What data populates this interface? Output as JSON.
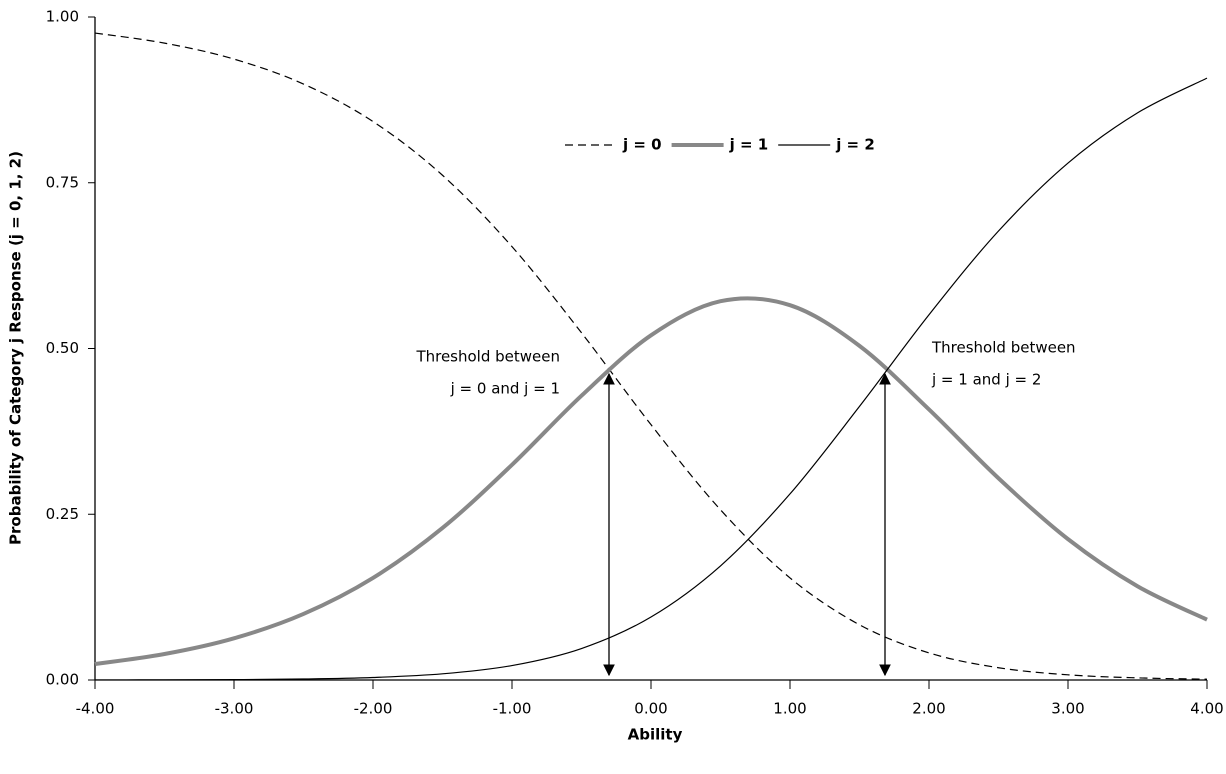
{
  "chart_data": {
    "type": "line",
    "xlabel": "Ability",
    "ylabel": "Probability of Category j Response (j = 0, 1, 2)",
    "x": [
      -4,
      -3.5,
      -3,
      -2.5,
      -2,
      -1.5,
      -1,
      -0.5,
      0,
      0.5,
      1,
      1.5,
      2,
      2.5,
      3,
      3.5,
      4
    ],
    "series": [
      {
        "name": "j = 0",
        "color": "#000000",
        "style": "dashed",
        "width": 1.2,
        "values": [
          0.9758,
          0.9606,
          0.9365,
          0.8989,
          0.8423,
          0.7613,
          0.6536,
          0.5237,
          0.3851,
          0.2567,
          0.154,
          0.0833,
          0.0409,
          0.0185,
          0.0078,
          0.0032,
          0.0012
        ]
      },
      {
        "name": "j = 1",
        "color": "#888888",
        "style": "solid",
        "width": 4,
        "values": [
          0.0241,
          0.0392,
          0.0629,
          0.0996,
          0.1539,
          0.2293,
          0.3246,
          0.4288,
          0.5199,
          0.5713,
          0.5653,
          0.504,
          0.4081,
          0.3043,
          0.2125,
          0.1414,
          0.091
        ]
      },
      {
        "name": "j = 2",
        "color": "#000000",
        "style": "solid",
        "width": 1.2,
        "values": [
          0.0001,
          0.0002,
          0.0006,
          0.0015,
          0.0038,
          0.0093,
          0.0218,
          0.0475,
          0.095,
          0.1721,
          0.2807,
          0.4127,
          0.5509,
          0.6772,
          0.7797,
          0.8554,
          0.9078
        ]
      }
    ],
    "xlim": [
      -4,
      4
    ],
    "xticks": [
      {
        "value": -4,
        "label": "-4.00"
      },
      {
        "value": -3,
        "label": "-3.00"
      },
      {
        "value": -2,
        "label": "-2.00"
      },
      {
        "value": -1,
        "label": "-1.00"
      },
      {
        "value": 0,
        "label": "0.00"
      },
      {
        "value": 1,
        "label": "1.00"
      },
      {
        "value": 2,
        "label": "2.00"
      },
      {
        "value": 3,
        "label": "3.00"
      },
      {
        "value": 4,
        "label": "4.00"
      }
    ],
    "ylim": [
      0,
      1
    ],
    "yticks": [
      {
        "value": 0,
        "label": "0.00"
      },
      {
        "value": 0.25,
        "label": "0.25"
      },
      {
        "value": 0.5,
        "label": "0.50"
      },
      {
        "value": 0.75,
        "label": "0.75"
      },
      {
        "value": 1,
        "label": "1.00"
      }
    ],
    "grid": false,
    "annotations": [
      {
        "lines": [
          "Threshold between",
          "j = 0 and j = 1"
        ]
      },
      {
        "lines": [
          "Threshold between",
          "j = 1 and j = 2"
        ]
      }
    ]
  }
}
